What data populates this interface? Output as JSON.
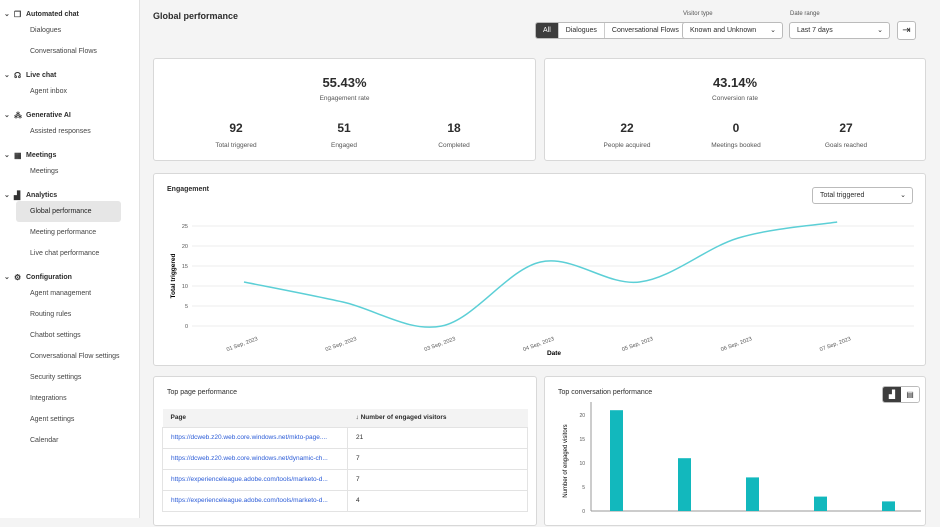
{
  "sidebar": {
    "sections": [
      {
        "label": "Automated chat",
        "icon": "chat-bot-icon",
        "items": [
          "Dialogues",
          "Conversational Flows"
        ]
      },
      {
        "label": "Live chat",
        "icon": "headset-icon",
        "items": [
          "Agent inbox"
        ]
      },
      {
        "label": "Generative AI",
        "icon": "ai-network-icon",
        "items": [
          "Assisted responses"
        ]
      },
      {
        "label": "Meetings",
        "icon": "calendar-icon",
        "items": [
          "Meetings"
        ]
      },
      {
        "label": "Analytics",
        "icon": "bar-chart-icon",
        "items": [
          "Global performance",
          "Meeting performance",
          "Live chat performance"
        ]
      },
      {
        "label": "Configuration",
        "icon": "gear-icon",
        "items": [
          "Agent management",
          "Routing rules",
          "Chatbot settings",
          "Conversational Flow settings",
          "Security settings",
          "Integrations",
          "Agent settings",
          "Calendar"
        ]
      }
    ],
    "active": "Global performance"
  },
  "header": {
    "title": "Global performance",
    "filters": [
      "All",
      "Dialogues",
      "Conversational Flows"
    ],
    "visitor_type_label": "Visitor type",
    "visitor_type": "Known and Unknown",
    "date_range_label": "Date range",
    "date_range": "Last 7 days"
  },
  "engagement_summary": {
    "rate": "55.43%",
    "rate_label": "Engagement rate",
    "stats": [
      {
        "value": "92",
        "label": "Total triggered"
      },
      {
        "value": "51",
        "label": "Engaged"
      },
      {
        "value": "18",
        "label": "Completed"
      }
    ]
  },
  "conversion_summary": {
    "rate": "43.14%",
    "rate_label": "Conversion rate",
    "stats": [
      {
        "value": "22",
        "label": "People acquired"
      },
      {
        "value": "0",
        "label": "Meetings booked"
      },
      {
        "value": "27",
        "label": "Goals reached"
      }
    ]
  },
  "engagement_chart": {
    "title": "Engagement",
    "metric_select": "Total triggered"
  },
  "top_pages": {
    "title": "Top page performance",
    "columns": [
      "Page",
      "Number of engaged visitors"
    ],
    "rows": [
      [
        "https://dcweb.z20.web.core.windows.net/mkto-page....",
        "21"
      ],
      [
        "https://dcweb.z20.web.core.windows.net/dynamic-ch...",
        "7"
      ],
      [
        "https://experienceleague.adobe.com/tools/marketo-d...",
        "7"
      ],
      [
        "https://experienceleague.adobe.com/tools/marketo-d...",
        "4"
      ]
    ]
  },
  "top_conversations": {
    "title": "Top conversation performance"
  },
  "chart_data": [
    {
      "type": "line",
      "title": "Engagement",
      "xlabel": "Date",
      "ylabel": "Total triggered",
      "categories": [
        "01 Sep, 2023",
        "02 Sep, 2023",
        "03 Sep, 2023",
        "04 Sep, 2023",
        "05 Sep, 2023",
        "06 Sep, 2023",
        "07 Sep, 2023"
      ],
      "values": [
        11,
        6,
        0,
        16,
        11,
        22,
        26
      ],
      "yticks": [
        0,
        5,
        10,
        15,
        20,
        25
      ],
      "ylim": [
        0,
        25
      ],
      "color": "#5ccfd6"
    },
    {
      "type": "bar",
      "title": "Top conversation performance",
      "ylabel": "Number of engaged visitors",
      "values": [
        21,
        11,
        7,
        3,
        2
      ],
      "yticks": [
        0,
        5,
        10,
        15,
        20
      ],
      "ylim": [
        0,
        22
      ],
      "color": "#12b8bd"
    }
  ]
}
